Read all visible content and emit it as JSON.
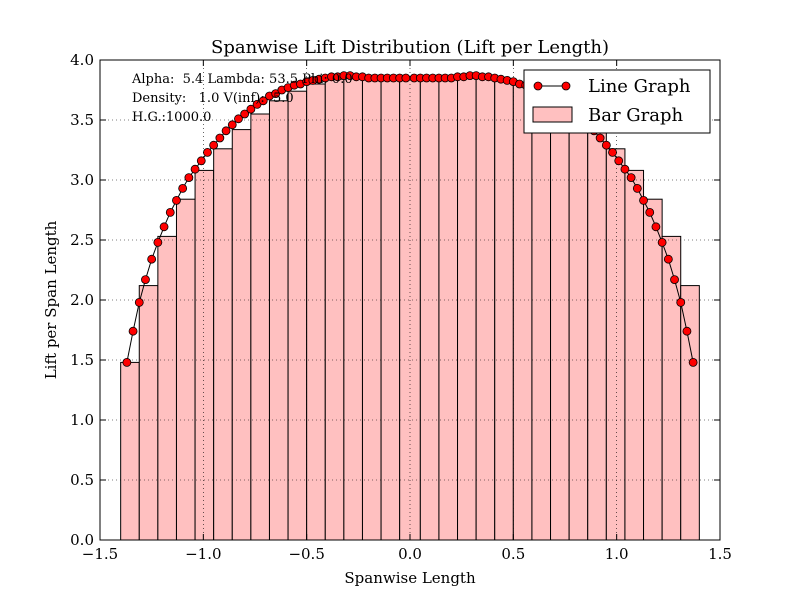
{
  "chart_data": {
    "type": "bar",
    "title": "Spanwise Lift Distribution (Lift per Length)",
    "xlabel": "Spanwise Length",
    "ylabel": "Lift per Span Length",
    "xlim": [
      -1.5,
      1.5
    ],
    "ylim": [
      0.0,
      4.0
    ],
    "xticks": [
      "−1.5",
      "−1.0",
      "−0.5",
      "0.0",
      "0.5",
      "1.0",
      "1.5"
    ],
    "xtick_values": [
      -1.5,
      -1.0,
      -0.5,
      0.0,
      0.5,
      1.0,
      1.5
    ],
    "yticks": [
      "0.0",
      "0.5",
      "1.0",
      "1.5",
      "2.0",
      "2.5",
      "3.0",
      "3.5",
      "4.0"
    ],
    "ytick_values": [
      0.0,
      0.5,
      1.0,
      1.5,
      2.0,
      2.5,
      3.0,
      3.5,
      4.0
    ],
    "grid": true,
    "legend_position": "top-right",
    "annotations": [
      "Alpha:  5.4 Lambda: 53.5 Phi: 0.0",
      "Density:   1.0 V(inf):  5.0",
      "H.G.:1000.0"
    ],
    "series": [
      {
        "name": "Bar Graph",
        "kind": "bar",
        "color": "#ffc0c0",
        "edge_color": "#000000",
        "bar_edges": [
          -1.4,
          -1.31,
          -1.22,
          -1.13,
          -1.04,
          -0.95,
          -0.86,
          -0.77,
          -0.68,
          -0.59,
          -0.5,
          -0.41,
          -0.32,
          -0.23,
          -0.14,
          -0.05,
          0.05,
          0.14,
          0.23,
          0.32,
          0.41,
          0.5,
          0.59,
          0.68,
          0.77,
          0.86,
          0.95,
          1.04,
          1.13,
          1.22,
          1.31,
          1.4
        ],
        "values": [
          1.48,
          2.12,
          2.53,
          2.84,
          3.08,
          3.26,
          3.42,
          3.55,
          3.66,
          3.74,
          3.8,
          3.84,
          3.86,
          3.87,
          3.86,
          3.85,
          3.85,
          3.86,
          3.87,
          3.86,
          3.84,
          3.8,
          3.74,
          3.66,
          3.55,
          3.42,
          3.26,
          3.08,
          2.84,
          2.53,
          2.12,
          1.48
        ]
      },
      {
        "name": "Line Graph",
        "kind": "line",
        "color": "#ff0000",
        "marker": "circle",
        "x": [
          -1.37,
          -1.34,
          -1.31,
          -1.28,
          -1.25,
          -1.22,
          -1.19,
          -1.16,
          -1.13,
          -1.1,
          -1.07,
          -1.04,
          -1.01,
          -0.98,
          -0.95,
          -0.92,
          -0.89,
          -0.86,
          -0.83,
          -0.8,
          -0.77,
          -0.74,
          -0.71,
          -0.68,
          -0.65,
          -0.62,
          -0.59,
          -0.56,
          -0.53,
          -0.5,
          -0.47,
          -0.44,
          -0.41,
          -0.38,
          -0.35,
          -0.32,
          -0.29,
          -0.26,
          -0.23,
          -0.2,
          -0.17,
          -0.14,
          -0.11,
          -0.08,
          -0.05,
          -0.02,
          0.02,
          0.05,
          0.08,
          0.11,
          0.14,
          0.17,
          0.2,
          0.23,
          0.26,
          0.29,
          0.32,
          0.35,
          0.38,
          0.41,
          0.44,
          0.47,
          0.5,
          0.53,
          0.56,
          0.59,
          0.62,
          0.65,
          0.68,
          0.71,
          0.74,
          0.77,
          0.8,
          0.83,
          0.86,
          0.89,
          0.92,
          0.95,
          0.98,
          1.01,
          1.04,
          1.07,
          1.1,
          1.13,
          1.16,
          1.19,
          1.22,
          1.25,
          1.28,
          1.31,
          1.34,
          1.37
        ],
        "y": [
          1.48,
          1.74,
          1.98,
          2.17,
          2.34,
          2.48,
          2.61,
          2.73,
          2.83,
          2.93,
          3.02,
          3.09,
          3.16,
          3.23,
          3.29,
          3.35,
          3.41,
          3.46,
          3.51,
          3.55,
          3.59,
          3.63,
          3.66,
          3.7,
          3.72,
          3.75,
          3.77,
          3.79,
          3.8,
          3.82,
          3.83,
          3.84,
          3.85,
          3.86,
          3.86,
          3.87,
          3.87,
          3.86,
          3.86,
          3.85,
          3.85,
          3.85,
          3.85,
          3.85,
          3.85,
          3.85,
          3.85,
          3.85,
          3.85,
          3.85,
          3.85,
          3.85,
          3.85,
          3.86,
          3.86,
          3.87,
          3.87,
          3.86,
          3.86,
          3.85,
          3.84,
          3.83,
          3.82,
          3.8,
          3.79,
          3.77,
          3.75,
          3.72,
          3.7,
          3.66,
          3.63,
          3.59,
          3.55,
          3.51,
          3.46,
          3.41,
          3.35,
          3.29,
          3.23,
          3.16,
          3.09,
          3.02,
          2.93,
          2.83,
          2.73,
          2.61,
          2.48,
          2.34,
          2.17,
          1.98,
          1.74,
          1.48
        ]
      }
    ]
  }
}
